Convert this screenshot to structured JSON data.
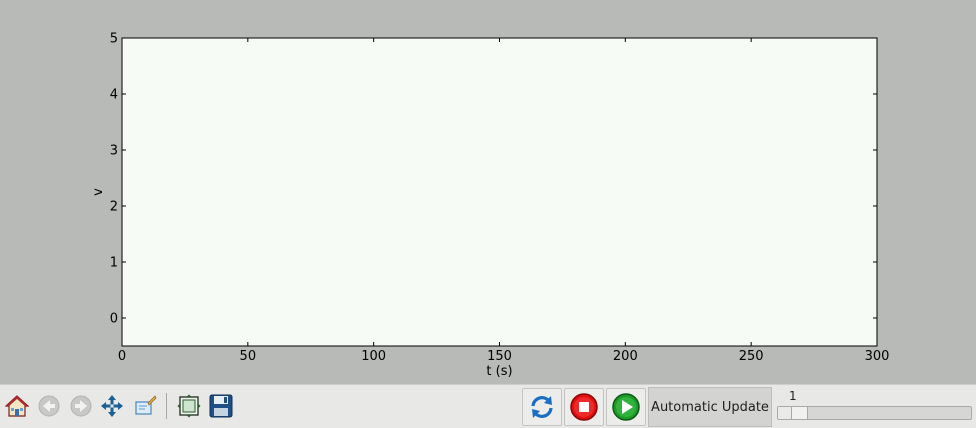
{
  "chart_data": {
    "type": "line",
    "xlabel": "t (s)",
    "ylabel": "v",
    "xlim": [
      0,
      300
    ],
    "ylim": [
      -0.5,
      5
    ],
    "xticks": [
      0,
      50,
      100,
      150,
      200,
      250,
      300
    ],
    "yticks": [
      0,
      1,
      2,
      3,
      4,
      5
    ],
    "series": [],
    "grid": false
  },
  "colors": {
    "figure_bg": "#b7bab6",
    "axes_bg": "#f6fbf6"
  },
  "toolbar": {
    "buttons": [
      {
        "icon": "home-icon"
      },
      {
        "icon": "back-arrow-icon"
      },
      {
        "icon": "forward-arrow-icon"
      },
      {
        "icon": "pan-icon"
      },
      {
        "icon": "zoom-rect-icon"
      },
      {
        "icon": "subplots-config-icon"
      },
      {
        "icon": "save-icon"
      }
    ],
    "refresh_icon": "refresh-icon",
    "stop_icon": "stop-icon",
    "play_icon": "play-icon",
    "auto_update_label": "Automatic Update",
    "slider": {
      "value": "1",
      "fraction": 0.08
    }
  }
}
